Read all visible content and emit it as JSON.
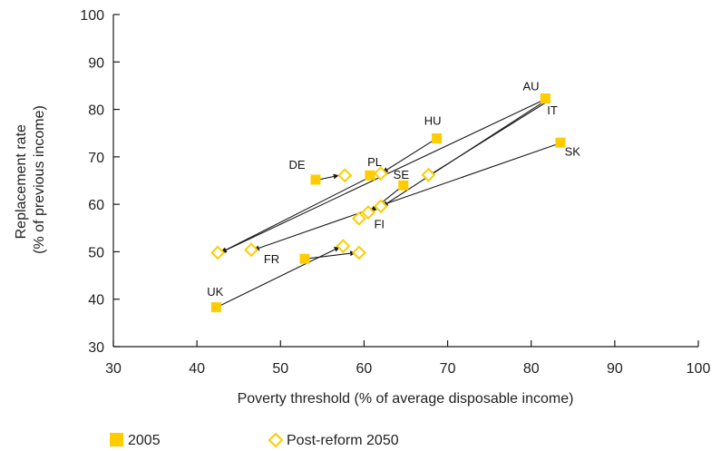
{
  "chart_data": {
    "type": "scatter",
    "title": "",
    "xlabel": "Poverty threshold (% of average disposable income)",
    "ylabel_lines": [
      "Replacement rate",
      "(% of previous income)"
    ],
    "xlim": [
      30,
      100
    ],
    "ylim": [
      30,
      100
    ],
    "xticks": [
      30,
      40,
      50,
      60,
      70,
      80,
      90,
      100
    ],
    "yticks": [
      30,
      40,
      50,
      60,
      70,
      80,
      90,
      100
    ],
    "grid": false,
    "legend_position": "bottom-left",
    "colors": {
      "series_2005": "#ffcc00",
      "series_2050": "#ffcc00",
      "arrow": "#1a1a1a"
    },
    "series": [
      {
        "name": "2005",
        "marker": "square",
        "points": [
          {
            "label": "AU",
            "x": 81.7,
            "y": 82.3
          },
          {
            "label": "IT",
            "x": 81.7,
            "y": 82.3
          },
          {
            "label": "SK",
            "x": 83.5,
            "y": 73.0
          },
          {
            "label": "HU",
            "x": 68.7,
            "y": 73.9
          },
          {
            "label": "DE",
            "x": 54.2,
            "y": 65.2
          },
          {
            "label": "PL",
            "x": 60.7,
            "y": 66.1
          },
          {
            "label": "SE",
            "x": 64.7,
            "y": 64.0
          },
          {
            "label": "FR",
            "x": 52.9,
            "y": 48.5
          },
          {
            "label": "UK",
            "x": 42.3,
            "y": 38.3
          }
        ]
      },
      {
        "name": "Post-reform 2050",
        "marker": "diamond-open",
        "points": [
          {
            "label": "DE",
            "x": 57.7,
            "y": 66.1
          },
          {
            "label": "PL",
            "x": 42.5,
            "y": 49.8
          },
          {
            "label": "HU",
            "x": 62.0,
            "y": 66.5
          },
          {
            "label": "AU",
            "x": 62.0,
            "y": 59.6
          },
          {
            "label": "IT",
            "x": 67.7,
            "y": 66.2
          },
          {
            "label": "SK",
            "x": 59.4,
            "y": 57.0
          },
          {
            "label": "SE",
            "x": 60.5,
            "y": 58.3
          },
          {
            "label": "FR",
            "x": 57.5,
            "y": 51.2
          },
          {
            "label": "UK",
            "x": 59.4,
            "y": 49.8
          },
          {
            "label": "FI",
            "x": 46.5,
            "y": 50.4
          }
        ]
      }
    ],
    "arrows": [
      {
        "from": [
          81.5,
          82.0
        ],
        "to": [
          42.8,
          49.8
        ]
      },
      {
        "from": [
          81.5,
          81.6
        ],
        "to": [
          62.2,
          59.6
        ]
      },
      {
        "from": [
          81.7,
          81.4
        ],
        "to": [
          67.7,
          66.0
        ]
      },
      {
        "from": [
          83.3,
          72.8
        ],
        "to": [
          46.8,
          50.4
        ]
      },
      {
        "from": [
          68.7,
          73.9
        ],
        "to": [
          62.2,
          66.7
        ]
      },
      {
        "from": [
          54.6,
          65.2
        ],
        "to": [
          57.0,
          66.1
        ]
      },
      {
        "from": [
          61.1,
          66.1
        ],
        "to": [
          42.9,
          49.9
        ]
      },
      {
        "from": [
          64.5,
          63.7
        ],
        "to": [
          60.8,
          58.5
        ]
      },
      {
        "from": [
          52.9,
          48.5
        ],
        "to": [
          59.0,
          49.8
        ]
      },
      {
        "from": [
          42.6,
          38.5
        ],
        "to": [
          57.1,
          51.0
        ]
      }
    ],
    "labels": [
      {
        "text": "AU",
        "x": 79.0,
        "y": 84.0
      },
      {
        "text": "IT",
        "x": 81.9,
        "y": 79.0
      },
      {
        "text": "SK",
        "x": 84.0,
        "y": 70.3
      },
      {
        "text": "HU",
        "x": 67.2,
        "y": 76.8
      },
      {
        "text": "DE",
        "x": 51.0,
        "y": 67.5
      },
      {
        "text": "PL",
        "x": 60.4,
        "y": 68.1
      },
      {
        "text": "SE",
        "x": 63.5,
        "y": 65.4
      },
      {
        "text": "FI",
        "x": 61.2,
        "y": 55.0
      },
      {
        "text": "FR",
        "x": 48.0,
        "y": 47.6
      },
      {
        "text": "UK",
        "x": 41.2,
        "y": 40.7
      }
    ]
  },
  "legend": {
    "items": [
      {
        "label": "2005",
        "marker": "square"
      },
      {
        "label": "Post-reform 2050",
        "marker": "diamond-open"
      }
    ]
  }
}
